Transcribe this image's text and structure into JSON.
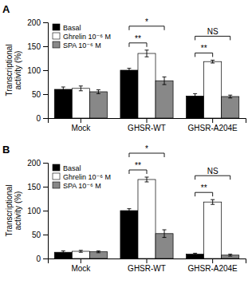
{
  "chart_data": [
    {
      "type": "bar",
      "title": "A",
      "categories": [
        "Mock",
        "GHSR-WT",
        "GHSR-A204E"
      ],
      "series": [
        {
          "name": "Basal",
          "color": "#000000",
          "values": [
            60,
            100,
            46
          ],
          "errors": [
            5,
            4,
            5
          ]
        },
        {
          "name": "Ghrelin 10⁻⁶ M",
          "color": "#ffffff",
          "values": [
            62,
            135,
            118
          ],
          "errors": [
            5,
            7,
            3
          ]
        },
        {
          "name": "SPA 10⁻⁶ M",
          "color": "#888888",
          "values": [
            55,
            78,
            45
          ],
          "errors": [
            4,
            8,
            3
          ]
        }
      ],
      "ylabel": "Transcriptional\nactivity (%)",
      "ylim": [
        0,
        200
      ],
      "yticks": [
        0,
        50,
        100,
        150,
        200
      ],
      "grid": false,
      "legend": "upper left",
      "annotations": [
        {
          "text": "**",
          "category": "GHSR-WT",
          "series": [
            "Basal",
            "Ghrelin 10⁻⁶ M"
          ]
        },
        {
          "text": "*",
          "category": "GHSR-WT",
          "series": [
            "Basal",
            "SPA 10⁻⁶ M"
          ]
        },
        {
          "text": "**",
          "category": "GHSR-A204E",
          "series": [
            "Basal",
            "Ghrelin 10⁻⁶ M"
          ]
        },
        {
          "text": "NS",
          "category": "GHSR-A204E",
          "series": [
            "Basal",
            "SPA 10⁻⁶ M"
          ]
        }
      ]
    },
    {
      "type": "bar",
      "title": "B",
      "categories": [
        "Mock",
        "GHSR-WT",
        "GHSR-A204E"
      ],
      "series": [
        {
          "name": "Basal",
          "color": "#000000",
          "values": [
            13,
            100,
            9
          ],
          "errors": [
            3,
            4,
            2
          ]
        },
        {
          "name": "Ghrelin 10⁻⁶ M",
          "color": "#ffffff",
          "values": [
            15,
            165,
            118
          ],
          "errors": [
            2,
            5,
            5
          ]
        },
        {
          "name": "SPA 10⁻⁶ M",
          "color": "#888888",
          "values": [
            14,
            52,
            7
          ],
          "errors": [
            2,
            8,
            2
          ]
        }
      ],
      "ylabel": "Transcriptional\nactivity (%)",
      "ylim": [
        0,
        200
      ],
      "yticks": [
        0,
        50,
        100,
        150,
        200
      ],
      "grid": false,
      "legend": "upper left",
      "annotations": [
        {
          "text": "**",
          "category": "GHSR-WT",
          "series": [
            "Basal",
            "Ghrelin 10⁻⁶ M"
          ]
        },
        {
          "text": "*",
          "category": "GHSR-WT",
          "series": [
            "Basal",
            "SPA 10⁻⁶ M"
          ]
        },
        {
          "text": "**",
          "category": "GHSR-A204E",
          "series": [
            "Basal",
            "Ghrelin 10⁻⁶ M"
          ]
        },
        {
          "text": "NS",
          "category": "GHSR-A204E",
          "series": [
            "Basal",
            "SPA 10⁻⁶ M"
          ]
        }
      ]
    }
  ]
}
